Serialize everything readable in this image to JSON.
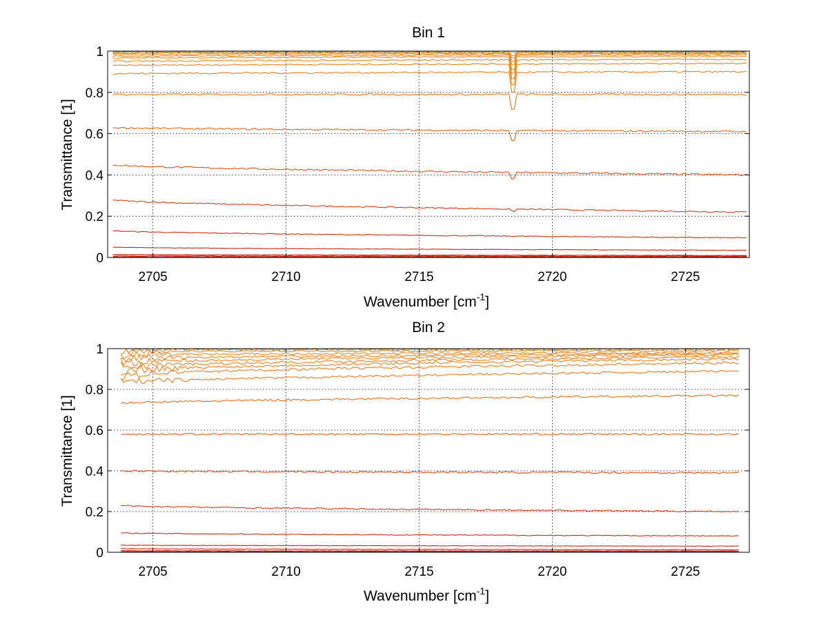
{
  "chart_data": [
    {
      "type": "line",
      "title": "Bin 1",
      "xlabel": "Wavenumber [cm",
      "xlabel_sup": "-1",
      "xlabel_suffix": "]",
      "ylabel": "Transmittance [1]",
      "xlim": [
        2703.3,
        2727.4
      ],
      "ylim": [
        0,
        1
      ],
      "x_range": [
        2703.5,
        2727.3
      ],
      "xticks": [
        2705,
        2710,
        2715,
        2720,
        2725
      ],
      "yticks": [
        0,
        0.2,
        0.4,
        0.6,
        0.8,
        1
      ],
      "ytick_labels": [
        "0",
        "0.2",
        "0.4",
        "0.6",
        "0.8",
        "1"
      ],
      "grid": true,
      "dip_position": 2718.5,
      "line_colors": {
        "upper": "#f28a1c",
        "lower": "#c81e0f",
        "noise": [
          "#2fa4e7",
          "#f5e13a",
          "#5bd08c",
          "#1b5fcf"
        ]
      },
      "series": [
        {
          "start": 0.003,
          "end": 0.003,
          "noise": 0.001,
          "dip": 0.0
        },
        {
          "start": 0.008,
          "end": 0.006,
          "noise": 0.001,
          "dip": 0.0
        },
        {
          "start": 0.015,
          "end": 0.01,
          "noise": 0.001,
          "dip": 0.0
        },
        {
          "start": 0.05,
          "end": 0.035,
          "noise": 0.001,
          "dip": 0.0
        },
        {
          "start": 0.13,
          "end": 0.095,
          "noise": 0.002,
          "dip": 0.0
        },
        {
          "start": 0.28,
          "end": 0.22,
          "noise": 0.003,
          "dip": 0.01
        },
        {
          "start": 0.45,
          "end": 0.4,
          "noise": 0.004,
          "dip": 0.03
        },
        {
          "start": 0.63,
          "end": 0.61,
          "noise": 0.004,
          "dip": 0.05
        },
        {
          "start": 0.79,
          "end": 0.79,
          "noise": 0.004,
          "dip": 0.07
        },
        {
          "start": 0.89,
          "end": 0.9,
          "noise": 0.004,
          "dip": 0.1
        },
        {
          "start": 0.93,
          "end": 0.94,
          "noise": 0.003,
          "dip": 0.1
        },
        {
          "start": 0.95,
          "end": 0.96,
          "noise": 0.003,
          "dip": 0.09
        },
        {
          "start": 0.965,
          "end": 0.975,
          "noise": 0.003,
          "dip": 0.08
        },
        {
          "start": 0.975,
          "end": 0.982,
          "noise": 0.003,
          "dip": 0.07
        },
        {
          "start": 0.983,
          "end": 0.988,
          "noise": 0.002,
          "dip": 0.05
        },
        {
          "start": 0.99,
          "end": 0.992,
          "noise": 0.002,
          "dip": 0.04
        },
        {
          "start": 0.995,
          "end": 0.996,
          "noise": 0.002,
          "dip": 0.03
        },
        {
          "start": 0.998,
          "end": 0.998,
          "noise": 0.002,
          "dip": 0.02
        }
      ]
    },
    {
      "type": "line",
      "title": "Bin 2",
      "xlabel": "Wavenumber [cm",
      "xlabel_sup": "-1",
      "xlabel_suffix": "]",
      "ylabel": "Transmittance [1]",
      "xlim": [
        2703.3,
        2727.4
      ],
      "ylim": [
        0,
        1
      ],
      "x_range": [
        2703.8,
        2727.0
      ],
      "xticks": [
        2705,
        2710,
        2715,
        2720,
        2725
      ],
      "yticks": [
        0,
        0.2,
        0.4,
        0.6,
        0.8,
        1
      ],
      "ytick_labels": [
        "0",
        "0.2",
        "0.4",
        "0.6",
        "0.8",
        "1"
      ],
      "grid": true,
      "dip_position": 2718.5,
      "line_colors": {
        "upper": "#f28a1c",
        "lower": "#c81e0f",
        "noise": [
          "#2fa4e7",
          "#f5e13a",
          "#5bd08c",
          "#1b5fcf"
        ]
      },
      "series": [
        {
          "start": 0.003,
          "end": 0.003,
          "noise": 0.001,
          "dip": 0.0
        },
        {
          "start": 0.008,
          "end": 0.006,
          "noise": 0.001,
          "dip": 0.0
        },
        {
          "start": 0.018,
          "end": 0.012,
          "noise": 0.001,
          "dip": 0.0
        },
        {
          "start": 0.035,
          "end": 0.03,
          "noise": 0.001,
          "dip": 0.0
        },
        {
          "start": 0.095,
          "end": 0.08,
          "noise": 0.002,
          "dip": 0.0
        },
        {
          "start": 0.23,
          "end": 0.2,
          "noise": 0.003,
          "dip": 0.0
        },
        {
          "start": 0.4,
          "end": 0.39,
          "noise": 0.004,
          "dip": 0.0
        },
        {
          "start": 0.58,
          "end": 0.58,
          "noise": 0.004,
          "dip": 0.0
        },
        {
          "start": 0.73,
          "end": 0.77,
          "noise": 0.005,
          "dip": 0.0
        },
        {
          "start": 0.83,
          "end": 0.89,
          "noise": 0.005,
          "dip": 0.0
        },
        {
          "start": 0.87,
          "end": 0.93,
          "noise": 0.006,
          "dip": 0.0
        },
        {
          "start": 0.89,
          "end": 0.95,
          "noise": 0.006,
          "dip": 0.0
        },
        {
          "start": 0.91,
          "end": 0.96,
          "noise": 0.006,
          "dip": 0.0
        },
        {
          "start": 0.93,
          "end": 0.97,
          "noise": 0.006,
          "dip": 0.0
        },
        {
          "start": 0.95,
          "end": 0.975,
          "noise": 0.005,
          "dip": 0.0
        },
        {
          "start": 0.97,
          "end": 0.98,
          "noise": 0.005,
          "dip": 0.0
        },
        {
          "start": 0.985,
          "end": 0.99,
          "noise": 0.004,
          "dip": 0.0
        },
        {
          "start": 0.995,
          "end": 0.997,
          "noise": 0.003,
          "dip": 0.0
        }
      ]
    }
  ]
}
